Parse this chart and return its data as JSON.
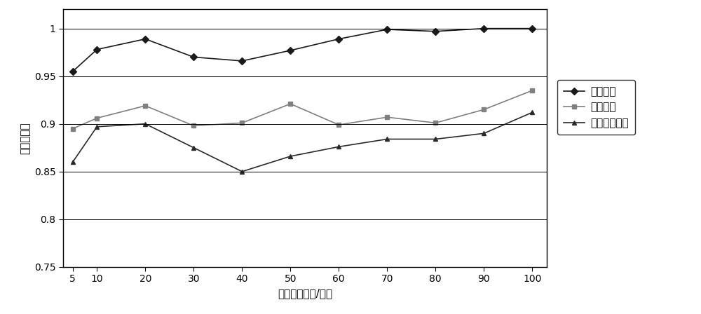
{
  "x": [
    5,
    10,
    20,
    30,
    40,
    50,
    60,
    70,
    80,
    90,
    100
  ],
  "series_order": [
    "改进算法",
    "原始算法",
    "随机调度算法"
  ],
  "series": {
    "改进算法": [
      0.955,
      0.978,
      0.989,
      0.97,
      0.966,
      0.977,
      0.989,
      0.999,
      0.997,
      1.0,
      1.0
    ],
    "原始算法": [
      0.895,
      0.906,
      0.919,
      0.898,
      0.901,
      0.921,
      0.899,
      0.907,
      0.901,
      0.915,
      0.935
    ],
    "随机调度算法": [
      0.86,
      0.897,
      0.9,
      0.875,
      0.85,
      0.866,
      0.876,
      0.884,
      0.884,
      0.89,
      0.912
    ]
  },
  "markers": {
    "改进算法": "D",
    "原始算法": "s",
    "随机调度算法": "^"
  },
  "colors": {
    "改进算法": "#1a1a1a",
    "原始算法": "#808080",
    "随机调度算法": "#2a2a2a"
  },
  "xlabel": "网络监测时间/分钟",
  "ylabel": "有效覆盖率",
  "ylim": [
    0.75,
    1.02
  ],
  "yticks": [
    0.75,
    0.8,
    0.85,
    0.9,
    0.95,
    1.0
  ],
  "xticks": [
    5,
    10,
    20,
    30,
    40,
    50,
    60,
    70,
    80,
    90,
    100
  ],
  "figsize": [
    10.0,
    4.48
  ],
  "dpi": 100,
  "background_color": "#ffffff",
  "grid_color": "#000000",
  "line_width": 1.2,
  "marker_size": 5
}
